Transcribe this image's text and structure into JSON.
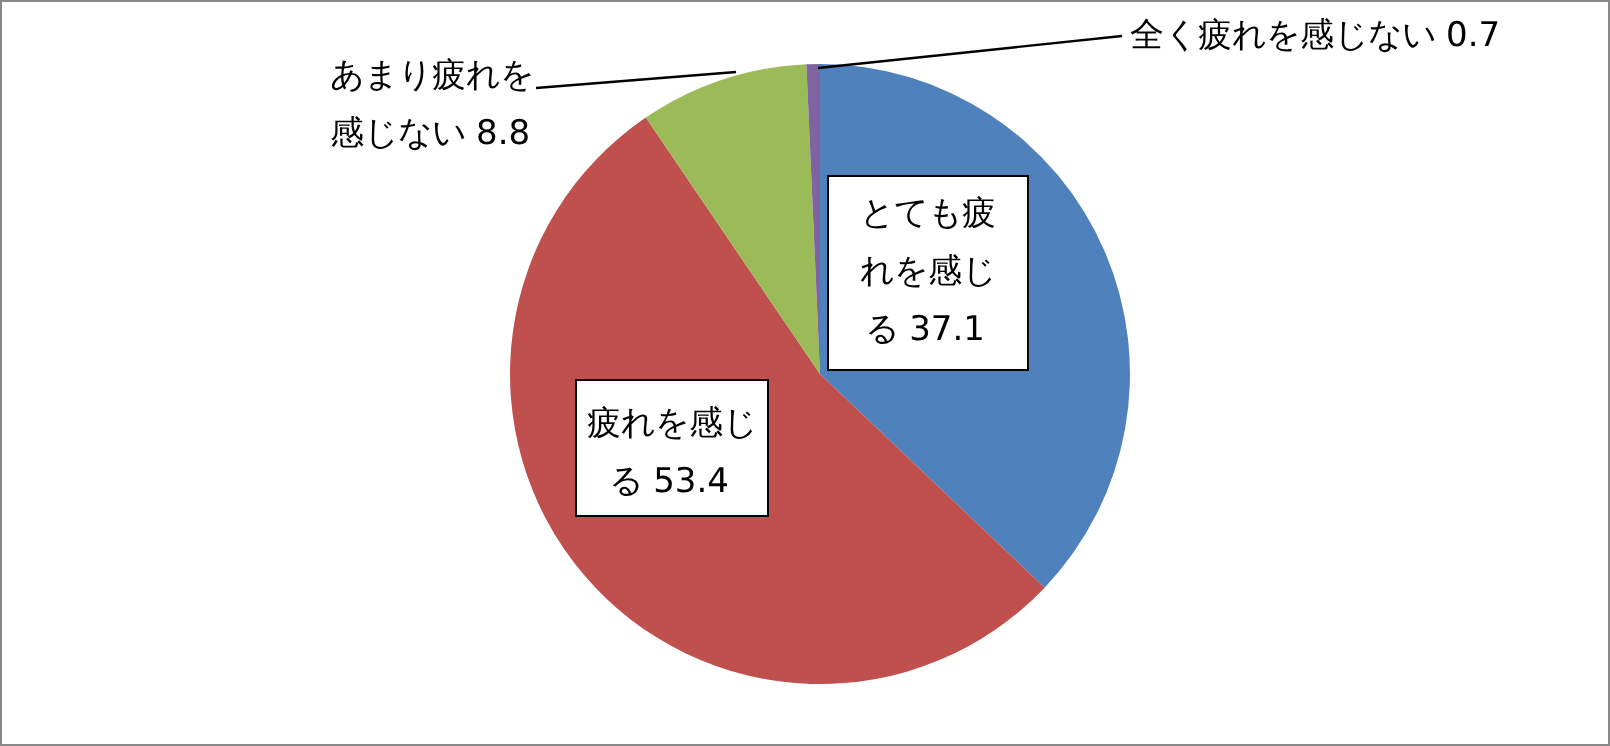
{
  "chart_data": {
    "type": "pie",
    "categories": [
      "とても疲れを感じる",
      "疲れを感じる",
      "あまり疲れを感じない",
      "全く疲れを感じない"
    ],
    "values": [
      37.1,
      53.4,
      8.8,
      0.7
    ],
    "colors": [
      "#4f81bd",
      "#c0504d",
      "#9bbb59",
      "#8064a2"
    ],
    "data_labels": true
  }
}
